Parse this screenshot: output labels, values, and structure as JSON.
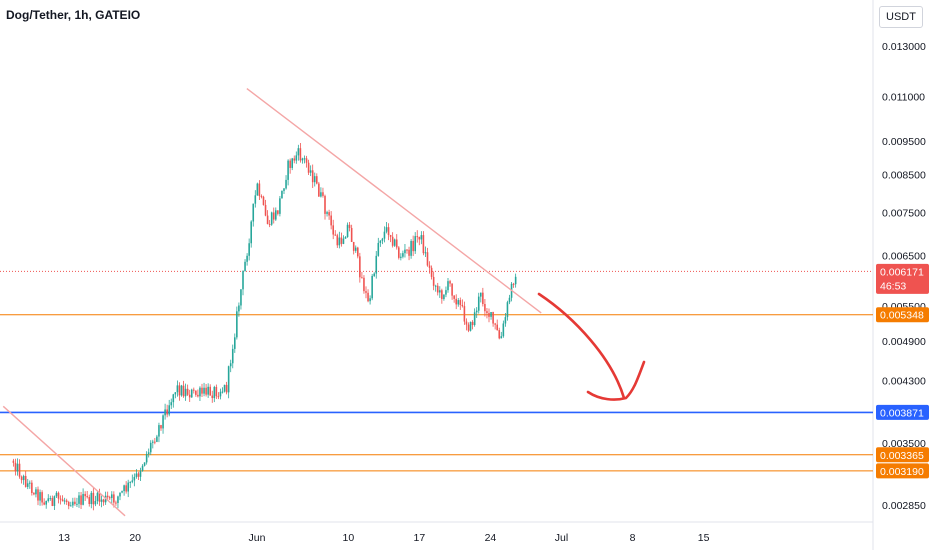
{
  "header": {
    "symbol_title": "Dog/Tether, 1h, GATEIO",
    "currency_label": "USDT"
  },
  "colors": {
    "up": "#26a69a",
    "down": "#ef5350",
    "trendline": "#f4a6a6",
    "orange_level": "#f57c00",
    "blue_level": "#2962ff",
    "arrow": "#e53935",
    "axis_text": "#131722"
  },
  "price_axis": {
    "ticks": [
      "0.013000",
      "0.011000",
      "0.009500",
      "0.008500",
      "0.007500",
      "0.006500",
      "0.005500",
      "0.004900",
      "0.004300",
      "0.003500",
      "0.002850"
    ]
  },
  "time_axis": {
    "ticks": [
      "13",
      "20",
      "Jun",
      "10",
      "17",
      "24",
      "Jul",
      "8",
      "15"
    ]
  },
  "price_labels": [
    {
      "value": "0.006171",
      "sub": "46:53",
      "kind": "current"
    },
    {
      "value": "0.005348",
      "kind": "orange"
    },
    {
      "value": "0.003871",
      "kind": "blue"
    },
    {
      "value": "0.003365",
      "kind": "orange"
    },
    {
      "value": "0.003190",
      "kind": "orange"
    }
  ],
  "chart_data": {
    "type": "candlestick",
    "symbol": "Dog/Tether",
    "interval": "1h",
    "exchange": "GATEIO",
    "scale": "log",
    "ylim": [
      0.00268,
      0.0145
    ],
    "current_price": 0.006171,
    "countdown": "46:53",
    "horizontal_levels": [
      {
        "price": 0.005348,
        "color": "orange"
      },
      {
        "price": 0.003871,
        "color": "blue"
      },
      {
        "price": 0.003365,
        "color": "orange"
      },
      {
        "price": 0.00319,
        "color": "orange"
      }
    ],
    "trendlines": [
      {
        "from": {
          "time": "May 31",
          "price": 0.0113
        },
        "to": {
          "time": "Jun 29",
          "price": 0.00538
        }
      },
      {
        "from": {
          "time": "May 7",
          "price": 0.00395
        },
        "to": {
          "time": "May 19",
          "price": 0.00275
        }
      }
    ],
    "price_path": [
      {
        "time": "May 8",
        "price": 0.0033
      },
      {
        "time": "May 9",
        "price": 0.0031
      },
      {
        "time": "May 11",
        "price": 0.0029
      },
      {
        "time": "May 18",
        "price": 0.0029
      },
      {
        "time": "May 20",
        "price": 0.0031
      },
      {
        "time": "May 22",
        "price": 0.0036
      },
      {
        "time": "May 24",
        "price": 0.0042
      },
      {
        "time": "May 26",
        "price": 0.0041
      },
      {
        "time": "May 29",
        "price": 0.0042
      },
      {
        "time": "May 30",
        "price": 0.0053
      },
      {
        "time": "Jun 1",
        "price": 0.0082
      },
      {
        "time": "Jun 2",
        "price": 0.0072
      },
      {
        "time": "Jun 3",
        "price": 0.0075
      },
      {
        "time": "Jun 4",
        "price": 0.0087
      },
      {
        "time": "Jun 5",
        "price": 0.0091
      },
      {
        "time": "Jun 6",
        "price": 0.0088
      },
      {
        "time": "Jun 7",
        "price": 0.0081
      },
      {
        "time": "Jun 8",
        "price": 0.0074
      },
      {
        "time": "Jun 9",
        "price": 0.0067
      },
      {
        "time": "Jun 10",
        "price": 0.0072
      },
      {
        "time": "Jun 11",
        "price": 0.0063
      },
      {
        "time": "Jun 12",
        "price": 0.0055
      },
      {
        "time": "Jun 13",
        "price": 0.0069
      },
      {
        "time": "Jun 14",
        "price": 0.0071
      },
      {
        "time": "Jun 15",
        "price": 0.0065
      },
      {
        "time": "Jun 16",
        "price": 0.0066
      },
      {
        "time": "Jun 17",
        "price": 0.007
      },
      {
        "time": "Jun 18",
        "price": 0.0062
      },
      {
        "time": "Jun 19",
        "price": 0.0057
      },
      {
        "time": "Jun 20",
        "price": 0.0059
      },
      {
        "time": "Jun 21",
        "price": 0.0055
      },
      {
        "time": "Jun 22",
        "price": 0.0051
      },
      {
        "time": "Jun 23",
        "price": 0.0057
      },
      {
        "time": "Jun 24",
        "price": 0.0053
      },
      {
        "time": "Jun 25",
        "price": 0.0049
      },
      {
        "time": "Jun 26",
        "price": 0.0058
      },
      {
        "time": "Jun 26.5",
        "price": 0.0062
      }
    ]
  }
}
